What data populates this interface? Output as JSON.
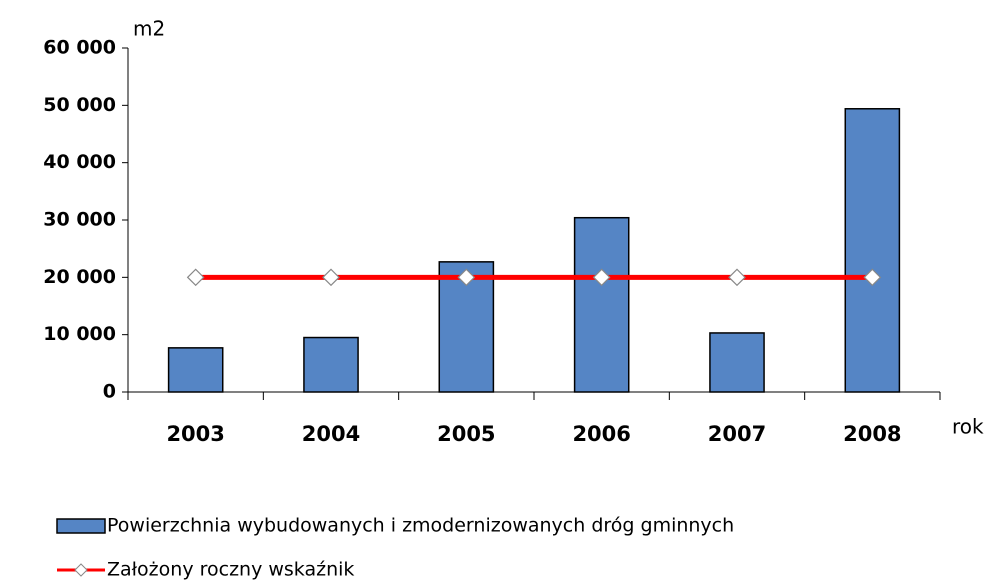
{
  "chart_data": {
    "type": "bar",
    "y_label": "m2",
    "x_label": "rok",
    "categories": [
      "2003",
      "2004",
      "2005",
      "2006",
      "2007",
      "2008"
    ],
    "series": [
      {
        "name": "Powierzchnia wybudowanych i zmodernizowanych dróg gminnych",
        "type": "bar",
        "color": "#5585c5",
        "values": [
          7700,
          9500,
          22700,
          30400,
          10300,
          49400
        ]
      },
      {
        "name": "Założony roczny wskaźnik",
        "type": "line",
        "color": "#ff0000",
        "values": [
          20000,
          20000,
          20000,
          20000,
          20000,
          20000
        ]
      }
    ],
    "ylim": [
      0,
      60000
    ],
    "yticks": [
      0,
      {
        "value": 10000,
        "label": "10 000"
      },
      {
        "value": 20000,
        "label": "20 000"
      },
      {
        "value": 30000,
        "label": "30 000"
      },
      {
        "value": 40000,
        "label": "40 000"
      },
      {
        "value": 50000,
        "label": "50 000"
      },
      {
        "value": 60000,
        "label": "60 000"
      }
    ],
    "grid": false,
    "legend": "bottom"
  }
}
